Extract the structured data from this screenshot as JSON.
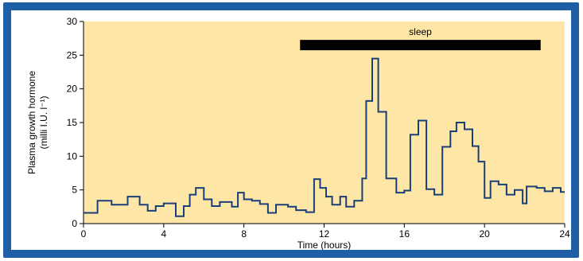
{
  "chart_data": {
    "type": "line",
    "style": "step",
    "title": "",
    "xlabel": "Time (hours)",
    "ylabel": "Plasma growth hormone",
    "ylabel_unit": "(milli I.U. l⁻¹)",
    "xlim": [
      0,
      24
    ],
    "ylim": [
      0,
      30
    ],
    "xticks": [
      0,
      4,
      8,
      12,
      16,
      20,
      24
    ],
    "yticks": [
      0,
      5,
      10,
      15,
      20,
      25,
      30
    ],
    "grid": false,
    "annotation": {
      "label": "sleep",
      "x_start": 10.8,
      "x_end": 22.8,
      "y": 26.5
    },
    "series": [
      {
        "points": [
          [
            0,
            1.6
          ],
          [
            0.7,
            3.4
          ],
          [
            1.4,
            2.8
          ],
          [
            2.2,
            4.0
          ],
          [
            2.8,
            2.8
          ],
          [
            3.2,
            1.9
          ],
          [
            3.6,
            2.6
          ],
          [
            4.0,
            3.0
          ],
          [
            4.6,
            1.1
          ],
          [
            5.0,
            2.6
          ],
          [
            5.3,
            4.3
          ],
          [
            5.6,
            5.3
          ],
          [
            6.0,
            3.6
          ],
          [
            6.4,
            2.6
          ],
          [
            6.8,
            3.2
          ],
          [
            7.4,
            2.5
          ],
          [
            7.7,
            4.6
          ],
          [
            8.0,
            3.6
          ],
          [
            8.4,
            3.4
          ],
          [
            8.8,
            2.9
          ],
          [
            9.2,
            1.6
          ],
          [
            9.6,
            2.8
          ],
          [
            10.2,
            2.5
          ],
          [
            10.6,
            2.0
          ],
          [
            11.1,
            1.7
          ],
          [
            11.5,
            6.6
          ],
          [
            11.8,
            5.3
          ],
          [
            12.1,
            4.0
          ],
          [
            12.4,
            2.8
          ],
          [
            12.8,
            4.0
          ],
          [
            13.1,
            2.5
          ],
          [
            13.5,
            3.4
          ],
          [
            13.9,
            6.7
          ],
          [
            14.1,
            18.2
          ],
          [
            14.4,
            24.5
          ],
          [
            14.7,
            16.6
          ],
          [
            15.1,
            6.7
          ],
          [
            15.6,
            4.6
          ],
          [
            16.0,
            4.9
          ],
          [
            16.3,
            13.2
          ],
          [
            16.7,
            15.3
          ],
          [
            17.1,
            5.1
          ],
          [
            17.5,
            4.3
          ],
          [
            17.9,
            11.4
          ],
          [
            18.3,
            13.7
          ],
          [
            18.6,
            15.0
          ],
          [
            19.0,
            14.0
          ],
          [
            19.4,
            11.5
          ],
          [
            19.7,
            9.2
          ],
          [
            20.0,
            3.8
          ],
          [
            20.3,
            6.3
          ],
          [
            20.7,
            5.8
          ],
          [
            21.1,
            4.3
          ],
          [
            21.5,
            5.0
          ],
          [
            21.9,
            3.0
          ],
          [
            22.1,
            5.5
          ],
          [
            22.6,
            5.3
          ],
          [
            23.0,
            4.8
          ],
          [
            23.4,
            5.3
          ],
          [
            23.8,
            4.7
          ],
          [
            24.0,
            4.7
          ]
        ]
      }
    ]
  },
  "colors": {
    "frame": "#1f5fa8",
    "plot_background": "#fde6a6",
    "line": "#1a3f78",
    "sleep_bar": "#000000"
  }
}
